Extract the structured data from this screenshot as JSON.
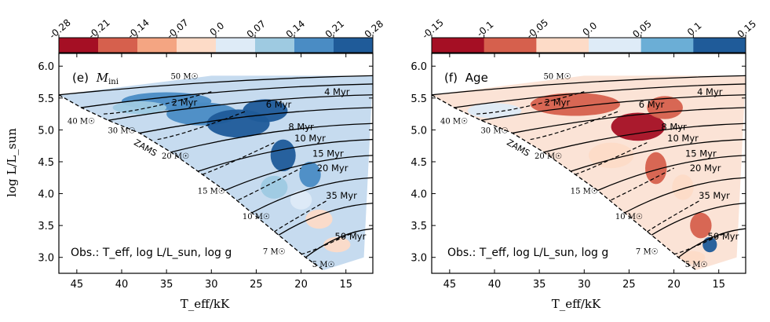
{
  "chart_data": [
    {
      "type": "heatmap",
      "panel_label": "(e)",
      "panel_name": "M_ini",
      "title": "(e) M_ini",
      "xlabel": "T_eff/kK",
      "ylabel": "log L/L_sun",
      "xlim": [
        47,
        12
      ],
      "ylim": [
        2.75,
        6.2
      ],
      "xticks": [
        45,
        40,
        35,
        30,
        25,
        20,
        15
      ],
      "yticks": [
        3.0,
        3.5,
        4.0,
        4.5,
        5.0,
        5.5,
        6.0
      ],
      "observables": "Obs.: T_eff, log L/L_sun, log g",
      "colorbar": {
        "ticks": [
          "-0.28",
          "-0.21",
          "-0.14",
          "-0.07",
          "0.0",
          "0.07",
          "0.14",
          "0.21",
          "0.28"
        ],
        "colors": [
          "#a50f24",
          "#d6604d",
          "#f4a582",
          "#fddbc7",
          "#deebf7",
          "#9ecae1",
          "#4a8cc4",
          "#1f5b99"
        ]
      },
      "mass_track_labels": [
        "50 M☉",
        "40 M☉",
        "30 M☉",
        "20 M☉",
        "15 M☉",
        "10 M☉",
        "7 M☉",
        "5 M☉"
      ],
      "isochrone_labels": [
        "2 Myr",
        "4 Myr",
        "6 Myr",
        "8 Myr",
        "10 Myr",
        "15 Myr",
        "20 Myr",
        "35 Myr",
        "50 Myr"
      ],
      "zams_label": "ZAMS"
    },
    {
      "type": "heatmap",
      "panel_label": "(f)",
      "panel_name": "Age",
      "title": "(f) Age",
      "xlabel": "T_eff/kK",
      "ylabel": "",
      "xlim": [
        47,
        12
      ],
      "ylim": [
        2.75,
        6.2
      ],
      "xticks": [
        45,
        40,
        35,
        30,
        25,
        20,
        15
      ],
      "yticks": [
        3.0,
        3.5,
        4.0,
        4.5,
        5.0,
        5.5,
        6.0
      ],
      "observables": "Obs.: T_eff, log L/L_sun, log g",
      "colorbar": {
        "ticks": [
          "-0.15",
          "-0.1",
          "-0.05",
          "0.0",
          "0.05",
          "0.1",
          "0.15"
        ],
        "colors": [
          "#a50f24",
          "#d6604d",
          "#fddbc7",
          "#deebf7",
          "#6baed6",
          "#1f5b99"
        ]
      },
      "mass_track_labels": [
        "50 M☉",
        "40 M☉",
        "30 M☉",
        "20 M☉",
        "15 M☉",
        "10 M☉",
        "7 M☉",
        "5 M☉"
      ],
      "isochrone_labels": [
        "2 Myr",
        "4 Myr",
        "6 Myr",
        "8 Myr",
        "10 Myr",
        "15 Myr",
        "20 Myr",
        "35 Myr",
        "50 Myr"
      ],
      "zams_label": "ZAMS"
    }
  ]
}
